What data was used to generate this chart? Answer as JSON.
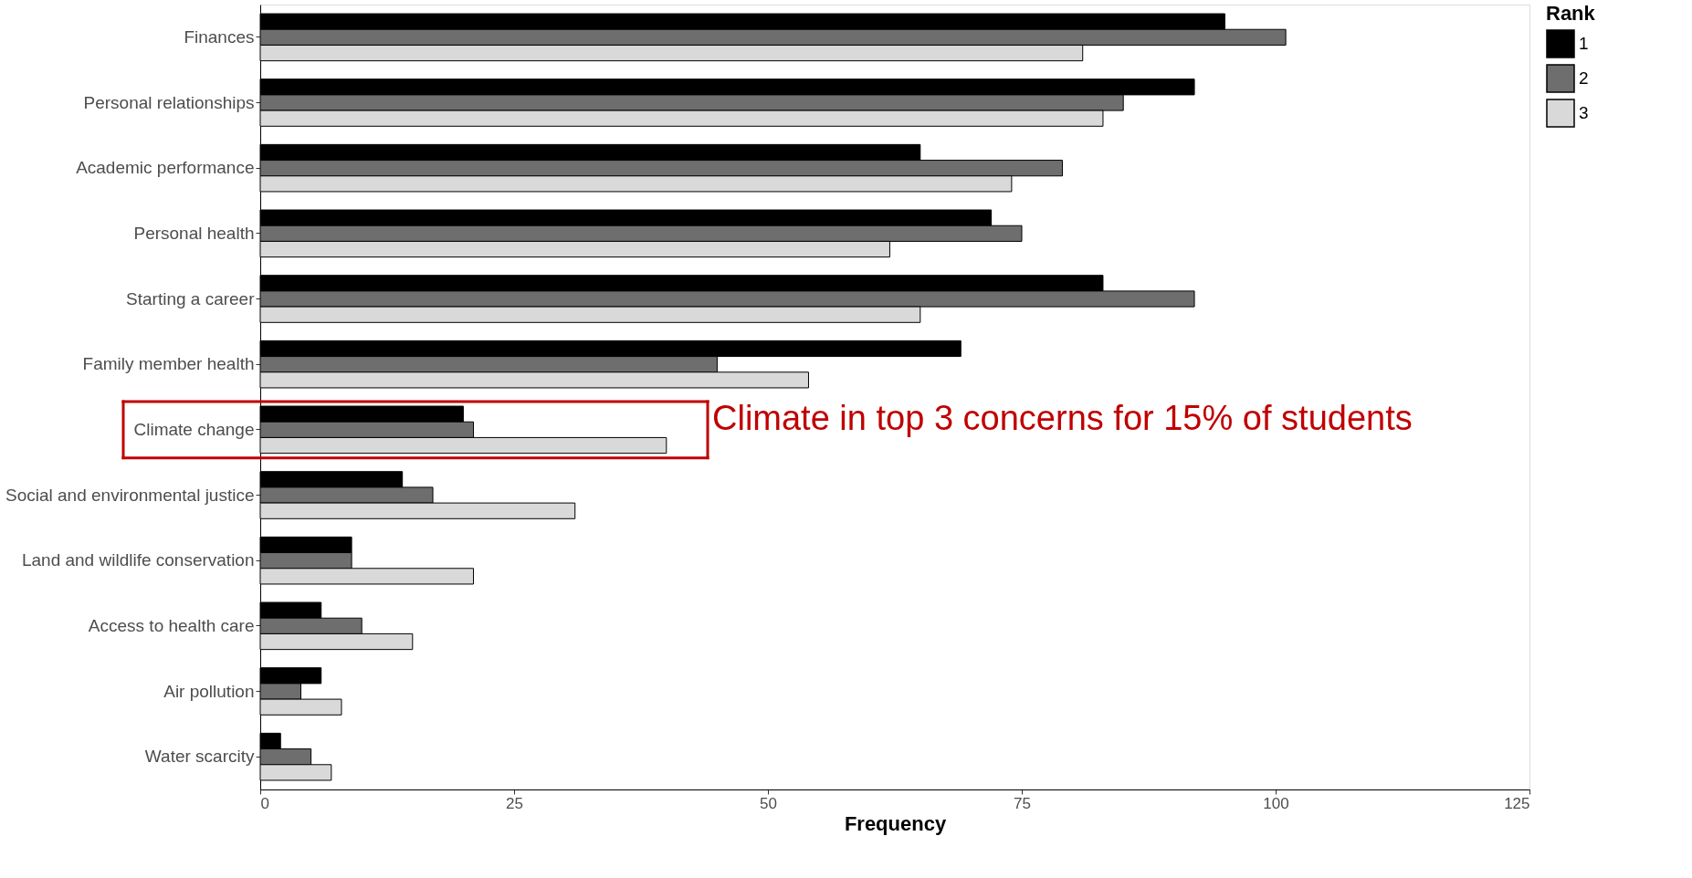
{
  "chart_data": {
    "type": "bar",
    "orientation": "horizontal",
    "xlabel": "Frequency",
    "legend_title": "Rank",
    "legend": "right",
    "grid": false,
    "categories": [
      "Finances",
      "Personal relationships",
      "Academic performance",
      "Personal health",
      "Starting a career",
      "Family member health",
      "Climate change",
      "Social and environmental justice",
      "Land and wildlife conservation",
      "Access to health care",
      "Air pollution",
      "Water scarcity"
    ],
    "series": [
      {
        "name": "1",
        "color": "#000000",
        "values": [
          95,
          92,
          65,
          72,
          83,
          69,
          20,
          14,
          9,
          6,
          6,
          2
        ]
      },
      {
        "name": "2",
        "color": "#6e6e6e",
        "values": [
          101,
          85,
          79,
          75,
          92,
          45,
          21,
          17,
          9,
          10,
          4,
          5
        ]
      },
      {
        "name": "3",
        "color": "#d9d9d9",
        "values": [
          81,
          83,
          74,
          62,
          65,
          54,
          40,
          31,
          21,
          15,
          8,
          7
        ]
      }
    ],
    "xlim": [
      0,
      125
    ],
    "xticks": [
      0,
      25,
      50,
      75,
      100,
      125
    ],
    "annotations": [
      "Climate in top 3 concerns for 15% of students"
    ]
  }
}
